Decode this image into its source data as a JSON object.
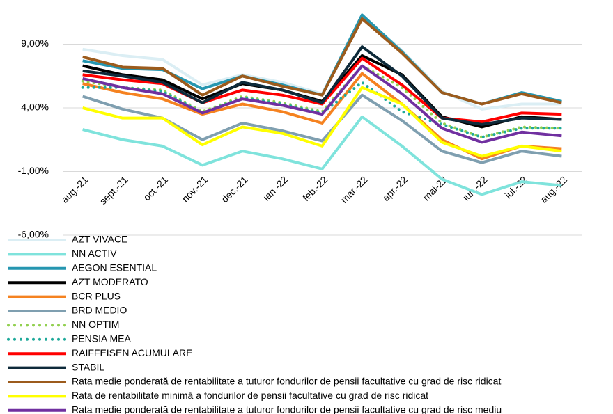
{
  "chart_data": {
    "type": "line",
    "categories": [
      "aug.-21",
      "sept.-21",
      "oct.-21",
      "nov.-21",
      "dec.-21",
      "ian.-22",
      "feb.-22",
      "mar.-22",
      "apr.-22",
      "mai-22",
      "iun.-22",
      "iul.-22",
      "aug.-22"
    ],
    "ylim": [
      -6,
      12
    ],
    "yticks": [
      {
        "value": -6,
        "label": "-6,00%"
      },
      {
        "value": -1,
        "label": "-1,00%"
      },
      {
        "value": 4,
        "label": "4,00%"
      },
      {
        "value": 9,
        "label": "9,00%"
      }
    ],
    "grid": true,
    "legend": "bottom",
    "series": [
      {
        "name": "AZT VIVACE",
        "color": "#dbeef4",
        "values": [
          8.6,
          8.1,
          7.8,
          5.8,
          6.6,
          6.0,
          5.1,
          11.2,
          8.5,
          5.3,
          3.9,
          4.3,
          4.3
        ]
      },
      {
        "name": "NN ACTIV",
        "color": "#7fe3dc",
        "values": [
          2.3,
          1.5,
          1.0,
          -0.5,
          0.6,
          0.0,
          -0.8,
          3.3,
          1.0,
          -1.6,
          -2.8,
          -1.8,
          -2.1
        ]
      },
      {
        "name": "AEGON ESENTIAL",
        "color": "#2596b0",
        "values": [
          7.7,
          7.1,
          7.0,
          5.5,
          6.5,
          5.8,
          5.0,
          11.3,
          8.4,
          5.2,
          4.3,
          5.2,
          4.5
        ]
      },
      {
        "name": "AZT MODERATO",
        "color": "#000000",
        "values": [
          7.3,
          6.6,
          6.2,
          4.7,
          5.9,
          5.4,
          4.5,
          8.1,
          6.6,
          3.3,
          2.5,
          3.3,
          3.1
        ]
      },
      {
        "name": "BCR PLUS",
        "color": "#f58220",
        "values": [
          5.9,
          5.2,
          4.7,
          3.5,
          4.3,
          3.7,
          2.8,
          6.7,
          4.3,
          1.5,
          0.0,
          1.0,
          0.8
        ]
      },
      {
        "name": "BRD MEDIO",
        "color": "#7f9fb0",
        "values": [
          4.9,
          3.9,
          3.2,
          1.5,
          2.8,
          2.2,
          1.4,
          5.0,
          3.0,
          0.6,
          -0.3,
          0.6,
          0.2
        ]
      },
      {
        "name": "NN OPTIM",
        "color": "#92d050",
        "dash": "dotted",
        "values": [
          6.1,
          5.6,
          5.4,
          3.7,
          4.9,
          4.4,
          3.7,
          7.3,
          5.6,
          2.8,
          1.7,
          2.5,
          2.4
        ]
      },
      {
        "name": "PENSIA MEA",
        "color": "#1fa99a",
        "dash": "dotted",
        "values": [
          5.6,
          5.6,
          5.3,
          3.6,
          4.8,
          4.3,
          3.6,
          6.0,
          3.7,
          2.7,
          1.7,
          2.4,
          2.4
        ]
      },
      {
        "name": "RAIFFEISEN ACUMULARE",
        "color": "#ff0000",
        "values": [
          6.6,
          6.2,
          5.9,
          4.4,
          5.4,
          5.0,
          4.3,
          7.9,
          5.8,
          3.2,
          2.9,
          3.6,
          3.5
        ]
      },
      {
        "name": "STABIL",
        "color": "#0e2a3a",
        "values": [
          6.9,
          6.5,
          6.0,
          4.4,
          6.0,
          5.4,
          4.4,
          8.8,
          6.5,
          3.2,
          2.7,
          3.2,
          3.1
        ]
      },
      {
        "name": "Rata medie ponderată de rentabilitate a tuturor fondurilor de pensii facultative cu grad de risc ridicat",
        "color": "#9c5b1c",
        "values": [
          8.0,
          7.2,
          7.1,
          5.0,
          6.5,
          5.7,
          5.0,
          11.0,
          8.3,
          5.2,
          4.3,
          5.1,
          4.4
        ]
      },
      {
        "name": "Rata de rentabilitate minimă a fondurilor de pensii facultative cu grad de risc ridicat",
        "color": "#ffff00",
        "values": [
          4.0,
          3.2,
          3.2,
          1.1,
          2.5,
          2.0,
          1.0,
          5.6,
          4.3,
          1.3,
          0.2,
          1.0,
          0.6
        ]
      },
      {
        "name": "Rata medie ponderată de rentabilitate a tuturor fondurilor de pensii facultative cu grad de risc mediu",
        "color": "#7030a0",
        "values": [
          6.3,
          5.6,
          5.1,
          3.6,
          4.7,
          4.2,
          3.5,
          7.3,
          5.1,
          2.4,
          1.3,
          2.1,
          1.8
        ]
      }
    ]
  }
}
